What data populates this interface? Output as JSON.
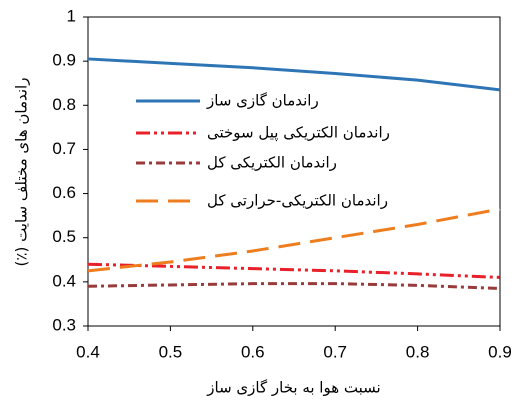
{
  "chart_data": {
    "type": "line",
    "x_label": "نسبت هوا به بخار گازی ساز",
    "y_label": "راندمان های مختلف سایت (٪)",
    "x": [
      0.4,
      0.5,
      0.6,
      0.7,
      0.8,
      0.9
    ],
    "series": [
      {
        "name": "راندمان گازی ساز",
        "color": "#2e75b6",
        "dash": "none",
        "values": [
          0.905,
          0.895,
          0.885,
          0.872,
          0.857,
          0.835
        ]
      },
      {
        "name": "راندمان الکتریکی پیل سوختی",
        "color": "#e8202a",
        "dash": "14,4,3,4,3,4",
        "values": [
          0.44,
          0.435,
          0.43,
          0.425,
          0.418,
          0.41
        ]
      },
      {
        "name": "راندمان الکتریکی کل",
        "color": "#9a3b3b",
        "dash": "9,4,3,4",
        "values": [
          0.39,
          0.393,
          0.396,
          0.396,
          0.392,
          0.385
        ]
      },
      {
        "name": "راندمان الکتریکی-حرارتی کل",
        "color": "#ee7d1f",
        "dash": "22,10",
        "values": [
          0.425,
          0.445,
          0.47,
          0.5,
          0.53,
          0.565
        ]
      }
    ],
    "xlim": [
      0.4,
      0.9
    ],
    "xticks": [
      0.4,
      0.5,
      0.6,
      0.7,
      0.8,
      0.9
    ],
    "ylim": [
      0.3,
      1
    ],
    "yticks": [
      0.3,
      0.4,
      0.5,
      0.6,
      0.7,
      0.8,
      0.9,
      1
    ],
    "legend": "upper center"
  }
}
